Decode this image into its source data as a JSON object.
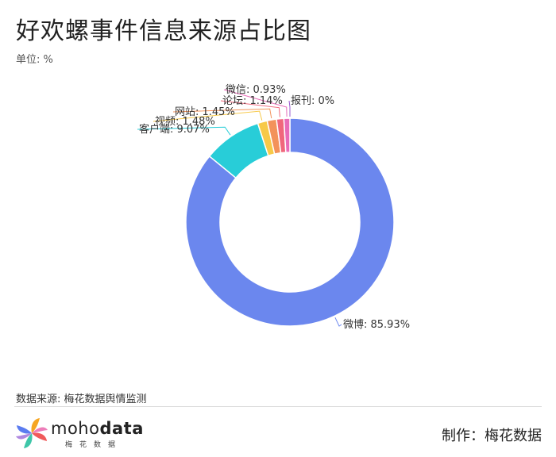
{
  "title": "好欢螺事件信息来源占比图",
  "unit": "单位: %",
  "source": "数据来源: 梅花数据舆情监测",
  "brand": {
    "light": "moho",
    "bold": "data",
    "sub": "梅花数据"
  },
  "maker": "制作：梅花数据",
  "chart_data": {
    "type": "pie",
    "donut": true,
    "title": "好欢螺事件信息来源占比图",
    "unit": "%",
    "slices": [
      {
        "name": "微博",
        "value": 85.93,
        "label": "微博: 85.93%",
        "color": "#6b87ee"
      },
      {
        "name": "客户端",
        "value": 9.07,
        "label": "客户端: 9.07%",
        "color": "#28cdd8"
      },
      {
        "name": "视频",
        "value": 1.48,
        "label": "视频: 1.48%",
        "color": "#f7c948"
      },
      {
        "name": "网站",
        "value": 1.45,
        "label": "网站: 1.45%",
        "color": "#f3925a"
      },
      {
        "name": "论坛",
        "value": 1.14,
        "label": "论坛: 1.14%",
        "color": "#f0677c"
      },
      {
        "name": "微信",
        "value": 0.93,
        "label": "微信: 0.93%",
        "color": "#e86bb8"
      },
      {
        "name": "报刊",
        "value": 0,
        "label": "报刊: 0%",
        "color": "#9b59d0"
      }
    ]
  }
}
